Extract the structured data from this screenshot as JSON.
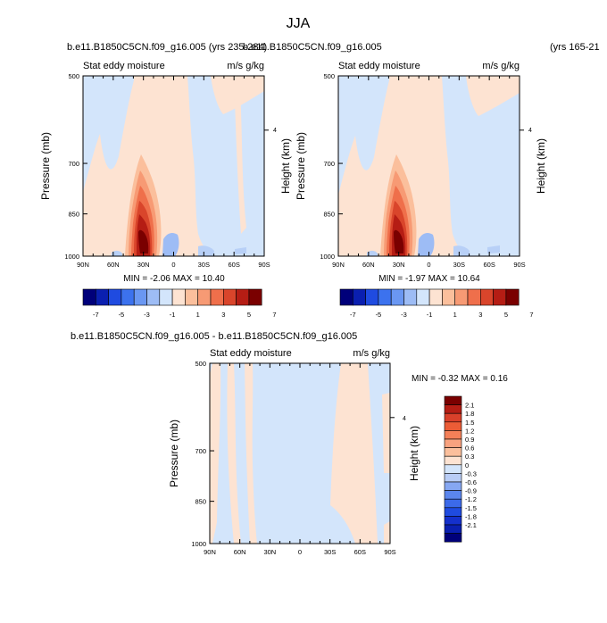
{
  "figure": {
    "title": "JJA"
  },
  "chart_data": [
    {
      "type": "heatmap",
      "title": "b.e11.B1850C5CN.f09_g16.005 (yrs 235-284)",
      "variable": "Stat eddy moisture",
      "units": "m/s g/kg",
      "xlabel": "",
      "ylabel": "Pressure (mb)",
      "y2label": "Height (km)",
      "x_ticks": [
        "90N",
        "60N",
        "30N",
        "0",
        "30S",
        "60S",
        "90S"
      ],
      "y_ticks": [
        "500",
        "700",
        "850",
        "1000"
      ],
      "y2_ticks": [
        "4"
      ],
      "ylim": [
        1000,
        500
      ],
      "stats": "MIN = -2.06  MAX = 10.40",
      "min": -2.06,
      "max": 10.4,
      "core": {
        "lat": 31,
        "pressure": 950,
        "value": 10.4
      },
      "colorbar": {
        "labels": [
          "-7",
          "-5",
          "-3",
          "-1",
          "1",
          "3",
          "5",
          "7"
        ]
      }
    },
    {
      "type": "heatmap",
      "title": "b.e11.B1850C5CN.f09_g16.005",
      "title_right": "(yrs 165-21",
      "variable": "Stat eddy moisture",
      "units": "m/s g/kg",
      "xlabel": "",
      "ylabel": "Pressure (mb)",
      "y2label": "Height (km)",
      "x_ticks": [
        "90N",
        "60N",
        "30N",
        "0",
        "30S",
        "60S",
        "90S"
      ],
      "y_ticks": [
        "500",
        "700",
        "850",
        "1000"
      ],
      "y2_ticks": [
        "4"
      ],
      "ylim": [
        1000,
        500
      ],
      "stats": "MIN = -1.97  MAX = 10.64",
      "min": -1.97,
      "max": 10.64,
      "core": {
        "lat": 31,
        "pressure": 950,
        "value": 10.64
      },
      "colorbar": {
        "labels": [
          "-7",
          "-5",
          "-3",
          "-1",
          "1",
          "3",
          "5",
          "7"
        ]
      }
    },
    {
      "type": "heatmap",
      "title": "b.e11.B1850C5CN.f09_g16.005 - b.e11.B1850C5CN.f09_g16.005",
      "variable": "Stat eddy moisture",
      "units": "m/s g/kg",
      "xlabel": "",
      "ylabel": "Pressure (mb)",
      "y2label": "Height (km)",
      "x_ticks": [
        "90N",
        "60N",
        "30N",
        "0",
        "30S",
        "60S",
        "90S"
      ],
      "y_ticks": [
        "500",
        "700",
        "850",
        "1000"
      ],
      "y2_ticks": [
        "4"
      ],
      "ylim": [
        1000,
        500
      ],
      "stats": "MIN = -0.32  MAX =  0.16",
      "min": -0.32,
      "max": 0.16,
      "colorbar": {
        "labels": [
          "2.1",
          "1.8",
          "1.5",
          "1.2",
          "0.9",
          "0.6",
          "0.3",
          "0",
          "-0.3",
          "-0.6",
          "-0.9",
          "-1.2",
          "-1.5",
          "-1.8",
          "-2.1"
        ]
      }
    }
  ],
  "colors": {
    "background": "#ffffff",
    "absolute_scale": [
      "#00007a",
      "#0a1fb0",
      "#1f4be0",
      "#3c72ee",
      "#6a97f2",
      "#9dbcf5",
      "#d3e5fb",
      "#fde3d2",
      "#fbbf9c",
      "#f79a74",
      "#ef6f4b",
      "#d9452b",
      "#b51d14",
      "#7a0000"
    ],
    "diff_scale": [
      "#00007a",
      "#0a1fb0",
      "#1430cc",
      "#1f4be0",
      "#3c6ae9",
      "#5b86ee",
      "#86a7f2",
      "#b9cdf6",
      "#d3e5fb",
      "#fde3d2",
      "#fbbf9c",
      "#f9a27f",
      "#f48058",
      "#ec5c36",
      "#d9402a",
      "#b51d14",
      "#7a0000"
    ]
  }
}
